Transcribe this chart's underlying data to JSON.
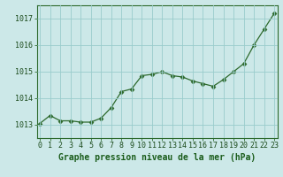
{
  "x": [
    0,
    1,
    2,
    3,
    4,
    5,
    6,
    7,
    8,
    9,
    10,
    11,
    12,
    13,
    14,
    15,
    16,
    17,
    18,
    19,
    20,
    21,
    22,
    23
  ],
  "y": [
    1013.05,
    1013.35,
    1013.15,
    1013.15,
    1013.1,
    1013.1,
    1013.25,
    1013.65,
    1014.25,
    1014.35,
    1014.85,
    1014.9,
    1015.0,
    1014.85,
    1014.8,
    1014.65,
    1014.55,
    1014.45,
    1014.7,
    1015.0,
    1015.3,
    1016.0,
    1016.6,
    1017.2
  ],
  "line_color": "#2d6a2d",
  "marker": "D",
  "marker_size": 2.5,
  "bg_color": "#cce8e8",
  "grid_color": "#99cccc",
  "title": "Graphe pression niveau de la mer (hPa)",
  "ylim": [
    1012.5,
    1017.5
  ],
  "yticks": [
    1013,
    1014,
    1015,
    1016,
    1017
  ],
  "xticks": [
    0,
    1,
    2,
    3,
    4,
    5,
    6,
    7,
    8,
    9,
    10,
    11,
    12,
    13,
    14,
    15,
    16,
    17,
    18,
    19,
    20,
    21,
    22,
    23
  ],
  "title_fontsize": 7.0,
  "tick_fontsize": 6.0,
  "label_color": "#1a4a1a",
  "spine_color": "#2d6a2d",
  "bottom_label_color": "#1a5c1a"
}
